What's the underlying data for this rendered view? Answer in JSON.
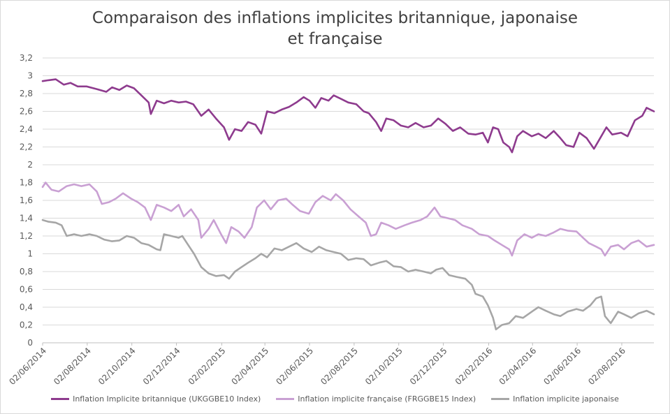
{
  "chart_data": {
    "type": "line",
    "title": "Comparaison des inflations implicites britannique, japonaise et française",
    "xlabel": "",
    "ylabel": "",
    "ylim": [
      0,
      3.2
    ],
    "y_ticks": [
      "0",
      "0,2",
      "0,4",
      "0,6",
      "0,8",
      "1",
      "1,2",
      "1,4",
      "1,6",
      "1,8",
      "2",
      "2,2",
      "2,4",
      "2,6",
      "2,8",
      "3",
      "3,2"
    ],
    "x_ticks": [
      "02/06/2014",
      "02/08/2014",
      "02/10/2014",
      "02/12/2014",
      "02/02/2015",
      "02/04/2015",
      "02/06/2015",
      "02/08/2015",
      "02/10/2015",
      "02/12/2015",
      "02/02/2016",
      "02/04/2016",
      "02/06/2016",
      "02/08/2016"
    ],
    "x_range": [
      "2014-06-02",
      "2016-09-15"
    ],
    "grid": true,
    "legend_position": "bottom",
    "series": [
      {
        "name": "Inflation Implicite britannique (UKGGBE10 Index)",
        "color": "#8e3b8e",
        "points": [
          [
            "2014-06-02",
            2.94
          ],
          [
            "2014-06-10",
            2.95
          ],
          [
            "2014-06-20",
            2.96
          ],
          [
            "2014-07-01",
            2.9
          ],
          [
            "2014-07-10",
            2.92
          ],
          [
            "2014-07-20",
            2.88
          ],
          [
            "2014-08-01",
            2.88
          ],
          [
            "2014-08-15",
            2.85
          ],
          [
            "2014-08-28",
            2.82
          ],
          [
            "2014-09-05",
            2.87
          ],
          [
            "2014-09-15",
            2.84
          ],
          [
            "2014-09-25",
            2.89
          ],
          [
            "2014-10-05",
            2.86
          ],
          [
            "2014-10-15",
            2.78
          ],
          [
            "2014-10-25",
            2.7
          ],
          [
            "2014-10-28",
            2.57
          ],
          [
            "2014-11-05",
            2.72
          ],
          [
            "2014-11-15",
            2.69
          ],
          [
            "2014-11-25",
            2.72
          ],
          [
            "2014-12-05",
            2.7
          ],
          [
            "2014-12-15",
            2.71
          ],
          [
            "2014-12-25",
            2.68
          ],
          [
            "2015-01-05",
            2.55
          ],
          [
            "2015-01-15",
            2.62
          ],
          [
            "2015-01-25",
            2.52
          ],
          [
            "2015-02-05",
            2.42
          ],
          [
            "2015-02-12",
            2.28
          ],
          [
            "2015-02-20",
            2.4
          ],
          [
            "2015-03-01",
            2.38
          ],
          [
            "2015-03-10",
            2.48
          ],
          [
            "2015-03-20",
            2.45
          ],
          [
            "2015-03-28",
            2.35
          ],
          [
            "2015-04-05",
            2.6
          ],
          [
            "2015-04-15",
            2.58
          ],
          [
            "2015-04-25",
            2.62
          ],
          [
            "2015-05-05",
            2.65
          ],
          [
            "2015-05-15",
            2.7
          ],
          [
            "2015-05-25",
            2.76
          ],
          [
            "2015-06-02",
            2.72
          ],
          [
            "2015-06-10",
            2.64
          ],
          [
            "2015-06-18",
            2.75
          ],
          [
            "2015-06-28",
            2.72
          ],
          [
            "2015-07-05",
            2.78
          ],
          [
            "2015-07-15",
            2.74
          ],
          [
            "2015-07-25",
            2.7
          ],
          [
            "2015-08-05",
            2.68
          ],
          [
            "2015-08-15",
            2.6
          ],
          [
            "2015-08-22",
            2.58
          ],
          [
            "2015-09-01",
            2.48
          ],
          [
            "2015-09-08",
            2.38
          ],
          [
            "2015-09-15",
            2.52
          ],
          [
            "2015-09-25",
            2.5
          ],
          [
            "2015-10-05",
            2.44
          ],
          [
            "2015-10-15",
            2.42
          ],
          [
            "2015-10-25",
            2.47
          ],
          [
            "2015-11-05",
            2.42
          ],
          [
            "2015-11-15",
            2.44
          ],
          [
            "2015-11-25",
            2.52
          ],
          [
            "2015-12-05",
            2.46
          ],
          [
            "2015-12-15",
            2.38
          ],
          [
            "2015-12-25",
            2.42
          ],
          [
            "2016-01-05",
            2.35
          ],
          [
            "2016-01-15",
            2.34
          ],
          [
            "2016-01-25",
            2.36
          ],
          [
            "2016-02-01",
            2.25
          ],
          [
            "2016-02-08",
            2.42
          ],
          [
            "2016-02-15",
            2.4
          ],
          [
            "2016-02-22",
            2.25
          ],
          [
            "2016-03-01",
            2.2
          ],
          [
            "2016-03-05",
            2.14
          ],
          [
            "2016-03-12",
            2.32
          ],
          [
            "2016-03-20",
            2.38
          ],
          [
            "2016-04-01",
            2.32
          ],
          [
            "2016-04-10",
            2.35
          ],
          [
            "2016-04-20",
            2.3
          ],
          [
            "2016-05-01",
            2.38
          ],
          [
            "2016-05-10",
            2.3
          ],
          [
            "2016-05-18",
            2.22
          ],
          [
            "2016-05-28",
            2.2
          ],
          [
            "2016-06-05",
            2.36
          ],
          [
            "2016-06-15",
            2.3
          ],
          [
            "2016-06-25",
            2.18
          ],
          [
            "2016-07-05",
            2.32
          ],
          [
            "2016-07-12",
            2.42
          ],
          [
            "2016-07-20",
            2.34
          ],
          [
            "2016-08-01",
            2.36
          ],
          [
            "2016-08-10",
            2.32
          ],
          [
            "2016-08-20",
            2.5
          ],
          [
            "2016-08-30",
            2.55
          ],
          [
            "2016-09-05",
            2.64
          ],
          [
            "2016-09-15",
            2.6
          ]
        ]
      },
      {
        "name": "Inflation implicite française (FRGGBE15 Index)",
        "color": "#c9a0d3",
        "points": [
          [
            "2014-06-02",
            1.75
          ],
          [
            "2014-06-06",
            1.8
          ],
          [
            "2014-06-14",
            1.72
          ],
          [
            "2014-06-24",
            1.7
          ],
          [
            "2014-07-05",
            1.76
          ],
          [
            "2014-07-15",
            1.78
          ],
          [
            "2014-07-25",
            1.76
          ],
          [
            "2014-08-05",
            1.78
          ],
          [
            "2014-08-15",
            1.7
          ],
          [
            "2014-08-22",
            1.56
          ],
          [
            "2014-09-01",
            1.58
          ],
          [
            "2014-09-10",
            1.62
          ],
          [
            "2014-09-20",
            1.68
          ],
          [
            "2014-10-01",
            1.62
          ],
          [
            "2014-10-10",
            1.58
          ],
          [
            "2014-10-20",
            1.52
          ],
          [
            "2014-10-28",
            1.38
          ],
          [
            "2014-11-05",
            1.55
          ],
          [
            "2014-11-15",
            1.52
          ],
          [
            "2014-11-25",
            1.48
          ],
          [
            "2014-12-05",
            1.55
          ],
          [
            "2014-12-12",
            1.42
          ],
          [
            "2014-12-22",
            1.5
          ],
          [
            "2015-01-01",
            1.38
          ],
          [
            "2015-01-05",
            1.18
          ],
          [
            "2015-01-15",
            1.28
          ],
          [
            "2015-01-22",
            1.38
          ],
          [
            "2015-02-01",
            1.22
          ],
          [
            "2015-02-08",
            1.12
          ],
          [
            "2015-02-15",
            1.3
          ],
          [
            "2015-02-25",
            1.25
          ],
          [
            "2015-03-05",
            1.18
          ],
          [
            "2015-03-15",
            1.3
          ],
          [
            "2015-03-22",
            1.52
          ],
          [
            "2015-04-01",
            1.6
          ],
          [
            "2015-04-10",
            1.5
          ],
          [
            "2015-04-20",
            1.6
          ],
          [
            "2015-05-01",
            1.62
          ],
          [
            "2015-05-10",
            1.55
          ],
          [
            "2015-05-20",
            1.48
          ],
          [
            "2015-06-01",
            1.45
          ],
          [
            "2015-06-10",
            1.58
          ],
          [
            "2015-06-20",
            1.65
          ],
          [
            "2015-07-01",
            1.6
          ],
          [
            "2015-07-08",
            1.67
          ],
          [
            "2015-07-18",
            1.6
          ],
          [
            "2015-07-28",
            1.5
          ],
          [
            "2015-08-08",
            1.42
          ],
          [
            "2015-08-18",
            1.35
          ],
          [
            "2015-08-25",
            1.2
          ],
          [
            "2015-09-01",
            1.22
          ],
          [
            "2015-09-08",
            1.35
          ],
          [
            "2015-09-18",
            1.32
          ],
          [
            "2015-09-28",
            1.28
          ],
          [
            "2015-10-10",
            1.32
          ],
          [
            "2015-10-20",
            1.35
          ],
          [
            "2015-11-01",
            1.38
          ],
          [
            "2015-11-10",
            1.42
          ],
          [
            "2015-11-20",
            1.52
          ],
          [
            "2015-11-28",
            1.42
          ],
          [
            "2015-12-08",
            1.4
          ],
          [
            "2015-12-18",
            1.38
          ],
          [
            "2015-12-28",
            1.32
          ],
          [
            "2016-01-10",
            1.28
          ],
          [
            "2016-01-20",
            1.22
          ],
          [
            "2016-02-01",
            1.2
          ],
          [
            "2016-02-10",
            1.15
          ],
          [
            "2016-02-20",
            1.1
          ],
          [
            "2016-03-01",
            1.05
          ],
          [
            "2016-03-05",
            0.98
          ],
          [
            "2016-03-12",
            1.15
          ],
          [
            "2016-03-22",
            1.22
          ],
          [
            "2016-04-01",
            1.18
          ],
          [
            "2016-04-10",
            1.22
          ],
          [
            "2016-04-20",
            1.2
          ],
          [
            "2016-05-01",
            1.24
          ],
          [
            "2016-05-10",
            1.28
          ],
          [
            "2016-05-20",
            1.26
          ],
          [
            "2016-06-01",
            1.25
          ],
          [
            "2016-06-10",
            1.18
          ],
          [
            "2016-06-18",
            1.12
          ],
          [
            "2016-06-28",
            1.08
          ],
          [
            "2016-07-05",
            1.05
          ],
          [
            "2016-07-10",
            0.98
          ],
          [
            "2016-07-18",
            1.08
          ],
          [
            "2016-07-28",
            1.1
          ],
          [
            "2016-08-05",
            1.05
          ],
          [
            "2016-08-15",
            1.12
          ],
          [
            "2016-08-25",
            1.15
          ],
          [
            "2016-09-05",
            1.08
          ],
          [
            "2016-09-15",
            1.1
          ]
        ]
      },
      {
        "name": "Inflation implicite japonaise",
        "color": "#a6a6a6",
        "points": [
          [
            "2014-06-02",
            1.38
          ],
          [
            "2014-06-10",
            1.36
          ],
          [
            "2014-06-20",
            1.35
          ],
          [
            "2014-06-28",
            1.32
          ],
          [
            "2014-07-05",
            1.2
          ],
          [
            "2014-07-15",
            1.22
          ],
          [
            "2014-07-25",
            1.2
          ],
          [
            "2014-08-05",
            1.22
          ],
          [
            "2014-08-15",
            1.2
          ],
          [
            "2014-08-25",
            1.16
          ],
          [
            "2014-09-05",
            1.14
          ],
          [
            "2014-09-15",
            1.15
          ],
          [
            "2014-09-25",
            1.2
          ],
          [
            "2014-10-05",
            1.18
          ],
          [
            "2014-10-15",
            1.12
          ],
          [
            "2014-10-25",
            1.1
          ],
          [
            "2014-11-05",
            1.05
          ],
          [
            "2014-11-10",
            1.04
          ],
          [
            "2014-11-15",
            1.22
          ],
          [
            "2014-11-25",
            1.2
          ],
          [
            "2014-12-05",
            1.18
          ],
          [
            "2014-12-10",
            1.2
          ],
          [
            "2014-12-18",
            1.1
          ],
          [
            "2014-12-26",
            1.0
          ],
          [
            "2015-01-05",
            0.85
          ],
          [
            "2015-01-15",
            0.78
          ],
          [
            "2015-01-25",
            0.75
          ],
          [
            "2015-02-05",
            0.76
          ],
          [
            "2015-02-12",
            0.72
          ],
          [
            "2015-02-20",
            0.8
          ],
          [
            "2015-03-01",
            0.85
          ],
          [
            "2015-03-10",
            0.9
          ],
          [
            "2015-03-20",
            0.95
          ],
          [
            "2015-03-28",
            1.0
          ],
          [
            "2015-04-05",
            0.96
          ],
          [
            "2015-04-15",
            1.06
          ],
          [
            "2015-04-25",
            1.04
          ],
          [
            "2015-05-05",
            1.08
          ],
          [
            "2015-05-15",
            1.12
          ],
          [
            "2015-05-25",
            1.06
          ],
          [
            "2015-06-05",
            1.02
          ],
          [
            "2015-06-15",
            1.08
          ],
          [
            "2015-06-25",
            1.04
          ],
          [
            "2015-07-05",
            1.02
          ],
          [
            "2015-07-15",
            1.0
          ],
          [
            "2015-07-25",
            0.93
          ],
          [
            "2015-08-05",
            0.95
          ],
          [
            "2015-08-15",
            0.94
          ],
          [
            "2015-08-25",
            0.87
          ],
          [
            "2015-09-05",
            0.9
          ],
          [
            "2015-09-15",
            0.92
          ],
          [
            "2015-09-25",
            0.86
          ],
          [
            "2015-10-05",
            0.85
          ],
          [
            "2015-10-15",
            0.8
          ],
          [
            "2015-10-25",
            0.82
          ],
          [
            "2015-11-05",
            0.8
          ],
          [
            "2015-11-15",
            0.78
          ],
          [
            "2015-11-22",
            0.82
          ],
          [
            "2015-12-01",
            0.84
          ],
          [
            "2015-12-10",
            0.76
          ],
          [
            "2015-12-20",
            0.74
          ],
          [
            "2016-01-01",
            0.72
          ],
          [
            "2016-01-10",
            0.65
          ],
          [
            "2016-01-15",
            0.55
          ],
          [
            "2016-01-25",
            0.52
          ],
          [
            "2016-02-01",
            0.42
          ],
          [
            "2016-02-08",
            0.28
          ],
          [
            "2016-02-12",
            0.15
          ],
          [
            "2016-02-20",
            0.2
          ],
          [
            "2016-03-01",
            0.22
          ],
          [
            "2016-03-10",
            0.3
          ],
          [
            "2016-03-20",
            0.28
          ],
          [
            "2016-04-01",
            0.35
          ],
          [
            "2016-04-10",
            0.4
          ],
          [
            "2016-04-20",
            0.36
          ],
          [
            "2016-05-01",
            0.32
          ],
          [
            "2016-05-10",
            0.3
          ],
          [
            "2016-05-20",
            0.35
          ],
          [
            "2016-06-01",
            0.38
          ],
          [
            "2016-06-10",
            0.36
          ],
          [
            "2016-06-20",
            0.42
          ],
          [
            "2016-06-28",
            0.5
          ],
          [
            "2016-07-05",
            0.52
          ],
          [
            "2016-07-10",
            0.3
          ],
          [
            "2016-07-18",
            0.22
          ],
          [
            "2016-07-28",
            0.35
          ],
          [
            "2016-08-05",
            0.32
          ],
          [
            "2016-08-15",
            0.28
          ],
          [
            "2016-08-25",
            0.33
          ],
          [
            "2016-09-05",
            0.36
          ],
          [
            "2016-09-15",
            0.32
          ]
        ]
      }
    ]
  }
}
